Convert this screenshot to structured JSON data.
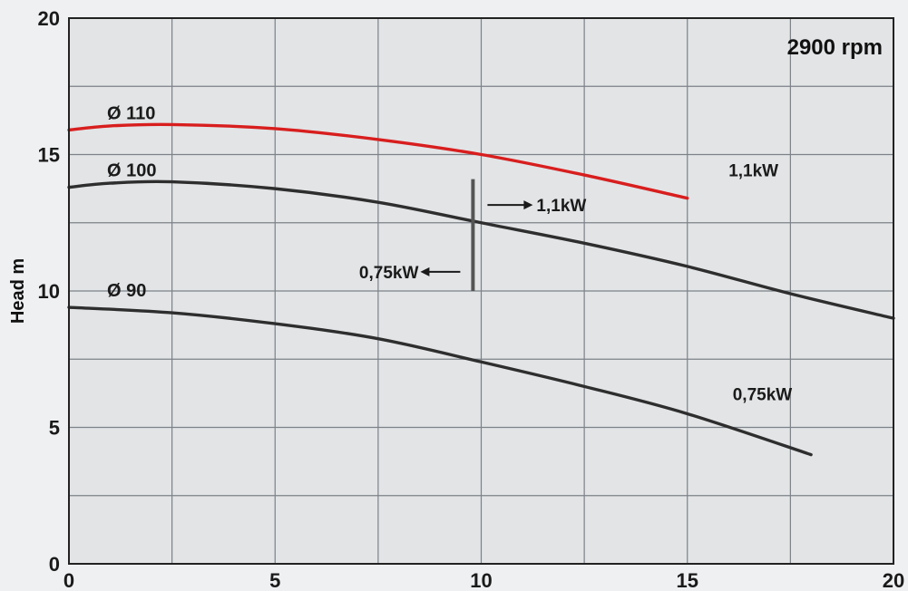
{
  "chart_data": {
    "type": "line",
    "speed_label": "2900 rpm",
    "ylabel": "Head m",
    "xlabel": "",
    "xlim": [
      0,
      20
    ],
    "ylim": [
      0,
      20
    ],
    "x_ticks": [
      "0",
      "5",
      "10",
      "15",
      "20"
    ],
    "y_ticks": [
      "0",
      "5",
      "10",
      "15",
      "20"
    ],
    "grid": true,
    "series": [
      {
        "name": "Ø 110",
        "color": "#d81e1e",
        "x": [
          0,
          1,
          2.5,
          5,
          7.5,
          10,
          12.5,
          15
        ],
        "y": [
          15.9,
          16.05,
          16.1,
          15.95,
          15.55,
          15.0,
          14.25,
          13.4
        ]
      },
      {
        "name": "Ø 100",
        "color": "#2e2e2e",
        "x": [
          0,
          1,
          2.5,
          5,
          7.5,
          10,
          12.5,
          15,
          17.5,
          20
        ],
        "y": [
          13.8,
          13.95,
          14.0,
          13.75,
          13.25,
          12.5,
          11.75,
          10.9,
          9.9,
          9.0
        ]
      },
      {
        "name": "Ø 90",
        "color": "#2e2e2e",
        "x": [
          0,
          2.5,
          5,
          7.5,
          10,
          12.5,
          15,
          18
        ],
        "y": [
          9.4,
          9.2,
          8.8,
          8.25,
          7.4,
          6.5,
          5.5,
          4.0
        ]
      }
    ],
    "power_labels": [
      {
        "text": "1,1kW",
        "x": 16.0,
        "y": 14.2
      },
      {
        "text": "0,75kW",
        "x": 16.1,
        "y": 6.0
      }
    ],
    "power_divider": {
      "x": 9.8,
      "y_range": [
        10.0,
        14.1
      ],
      "right_label": "1,1kW",
      "left_label": "0,75kW"
    }
  }
}
